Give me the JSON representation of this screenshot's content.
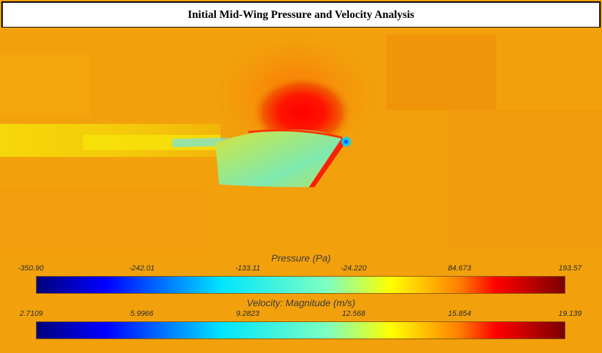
{
  "header": {
    "title": "Initial Mid-Wing Pressure and Velocity Analysis"
  },
  "colors": {
    "background": "#f2a10c",
    "colormap": [
      "#00007a",
      "#0000ff",
      "#00e5ff",
      "#7dffc0",
      "#ffff00",
      "#ff8000",
      "#ff0000",
      "#7a0000"
    ]
  },
  "pressure_legend": {
    "title": "Pressure (Pa)",
    "ticks": [
      "-350.90",
      "-242.01",
      "-133.11",
      "-24.220",
      "84.673",
      "193.57"
    ]
  },
  "velocity_legend": {
    "title": "Velocity: Magnitude (m/s)",
    "ticks": [
      "2.7109",
      "5.9966",
      "9.2823",
      "12.568",
      "15.854",
      "19.139"
    ]
  }
}
